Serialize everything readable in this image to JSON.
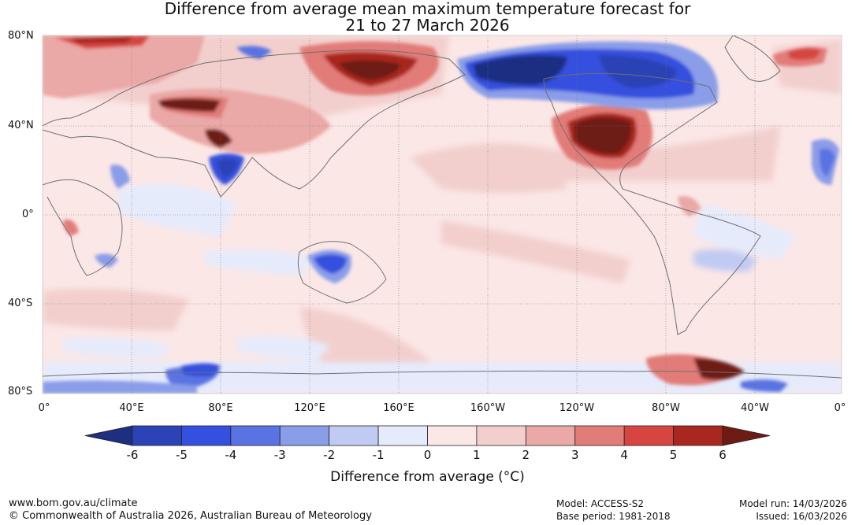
{
  "title": {
    "line1": "Difference from average mean maximum temperature forecast for",
    "line2": "21 to 27 March 2026"
  },
  "map": {
    "lat_labels": [
      "80°N",
      "40°N",
      "0°",
      "40°S",
      "80°S"
    ],
    "lon_labels": [
      "0°",
      "40°E",
      "80°E",
      "120°E",
      "160°E",
      "160°W",
      "120°W",
      "80°W",
      "40°W",
      "0°"
    ],
    "anomaly_regions": [
      {
        "name": "western-russia-warm",
        "anomaly": 3
      },
      {
        "name": "central-asia-warm",
        "anomaly": 6
      },
      {
        "name": "east-siberia-warm",
        "anomaly": 6
      },
      {
        "name": "north-india-cold",
        "anomaly": -5
      },
      {
        "name": "alaska-canada-cold",
        "anomaly": -6
      },
      {
        "name": "southwest-usa-warm",
        "anomaly": 6
      },
      {
        "name": "greenland-warm",
        "anomaly": 4
      },
      {
        "name": "north-australia-cold",
        "anomaly": -4
      },
      {
        "name": "antarctic-peninsula-warm",
        "anomaly": 6
      },
      {
        "name": "east-antarctica-cold",
        "anomaly": -4
      }
    ]
  },
  "colorbar": {
    "ticks": [
      "-6",
      "-5",
      "-4",
      "-3",
      "-2",
      "-1",
      "0",
      "1",
      "2",
      "3",
      "4",
      "5",
      "6"
    ],
    "colors": [
      "#1e2f82",
      "#2b43b6",
      "#3450de",
      "#5a73e2",
      "#8a9de9",
      "#c0caf3",
      "#e6ebfb",
      "#fbe7e6",
      "#f2cfcd",
      "#eaa8a6",
      "#e27c78",
      "#d6453f",
      "#a8281f",
      "#6e1a15"
    ],
    "title": "Difference from average (°C)"
  },
  "footer": {
    "website": "www.bom.gov.au/climate",
    "copyright": "© Commonwealth of Australia 2026, Australian Bureau of Meteorology",
    "model": "Model: ACCESS-S2",
    "base_period": "Base period: 1981-2018",
    "model_run": "Model run: 14/03/2026",
    "issued": "Issued: 16/03/2026"
  }
}
